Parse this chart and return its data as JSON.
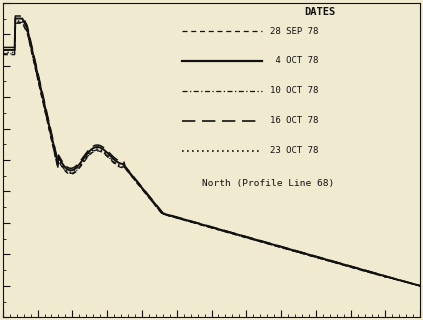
{
  "title": "North (Profile Line 68)",
  "dates_label": "DATES",
  "legend_entries": [
    {
      "label": "28 SEP 78",
      "linestyle": "dashed_short",
      "color": "#111111",
      "linewidth": 1.0
    },
    {
      "label": " 4 OCT 78",
      "linestyle": "solid",
      "color": "#111111",
      "linewidth": 1.6
    },
    {
      "label": "10 OCT 78",
      "linestyle": "dashdot",
      "color": "#111111",
      "linewidth": 1.0
    },
    {
      "label": "16 OCT 78",
      "linestyle": "dashed_long",
      "color": "#111111",
      "linewidth": 1.2
    },
    {
      "label": "23 OCT 78",
      "linestyle": "dotted",
      "color": "#111111",
      "linewidth": 1.2
    }
  ],
  "background_color": "#f0ead0",
  "tick_color": "#111111",
  "xlim": [
    0,
    600
  ],
  "ylim_min": 0,
  "ylim_max": 10
}
